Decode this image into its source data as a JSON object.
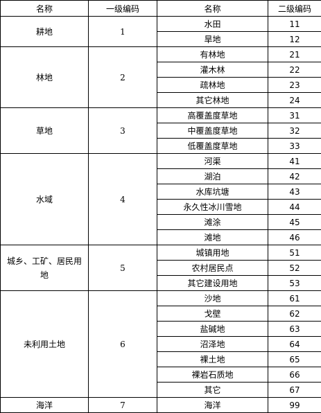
{
  "table": {
    "headers": [
      "名称",
      "一级编码",
      "名称",
      "二级编码"
    ],
    "groups": [
      {
        "name": "耕地",
        "code": "1",
        "items": [
          {
            "name": "水田",
            "code": "11"
          },
          {
            "name": "旱地",
            "code": "12"
          }
        ]
      },
      {
        "name": "林地",
        "code": "2",
        "items": [
          {
            "name": "有林地",
            "code": "21"
          },
          {
            "name": "灌木林",
            "code": "22"
          },
          {
            "name": "疏林地",
            "code": "23"
          },
          {
            "name": "其它林地",
            "code": "24"
          }
        ]
      },
      {
        "name": "草地",
        "code": "3",
        "items": [
          {
            "name": "高覆盖度草地",
            "code": "31"
          },
          {
            "name": "中覆盖度草地",
            "code": "32"
          },
          {
            "name": "低覆盖度草地",
            "code": "33"
          }
        ]
      },
      {
        "name": "水域",
        "code": "4",
        "items": [
          {
            "name": "河渠",
            "code": "41"
          },
          {
            "name": "湖泊",
            "code": "42"
          },
          {
            "name": "水库坑塘",
            "code": "43"
          },
          {
            "name": "永久性冰川雪地",
            "code": "44"
          },
          {
            "name": "滩涂",
            "code": "45"
          },
          {
            "name": "滩地",
            "code": "46"
          }
        ]
      },
      {
        "name": "城乡、工矿、居民用地",
        "code": "5",
        "items": [
          {
            "name": "城镇用地",
            "code": "51"
          },
          {
            "name": "农村居民点",
            "code": "52"
          },
          {
            "name": "其它建设用地",
            "code": "53"
          }
        ]
      },
      {
        "name": "未利用土地",
        "code": "6",
        "items": [
          {
            "name": "沙地",
            "code": "61"
          },
          {
            "name": "戈壁",
            "code": "62"
          },
          {
            "name": "盐碱地",
            "code": "63"
          },
          {
            "name": "沼泽地",
            "code": "64"
          },
          {
            "name": "裸土地",
            "code": "65"
          },
          {
            "name": "裸岩石质地",
            "code": "66"
          },
          {
            "name": "其它",
            "code": "67"
          }
        ]
      },
      {
        "name": "海洋",
        "code": "7",
        "items": [
          {
            "name": "海洋",
            "code": "99"
          }
        ]
      }
    ]
  }
}
